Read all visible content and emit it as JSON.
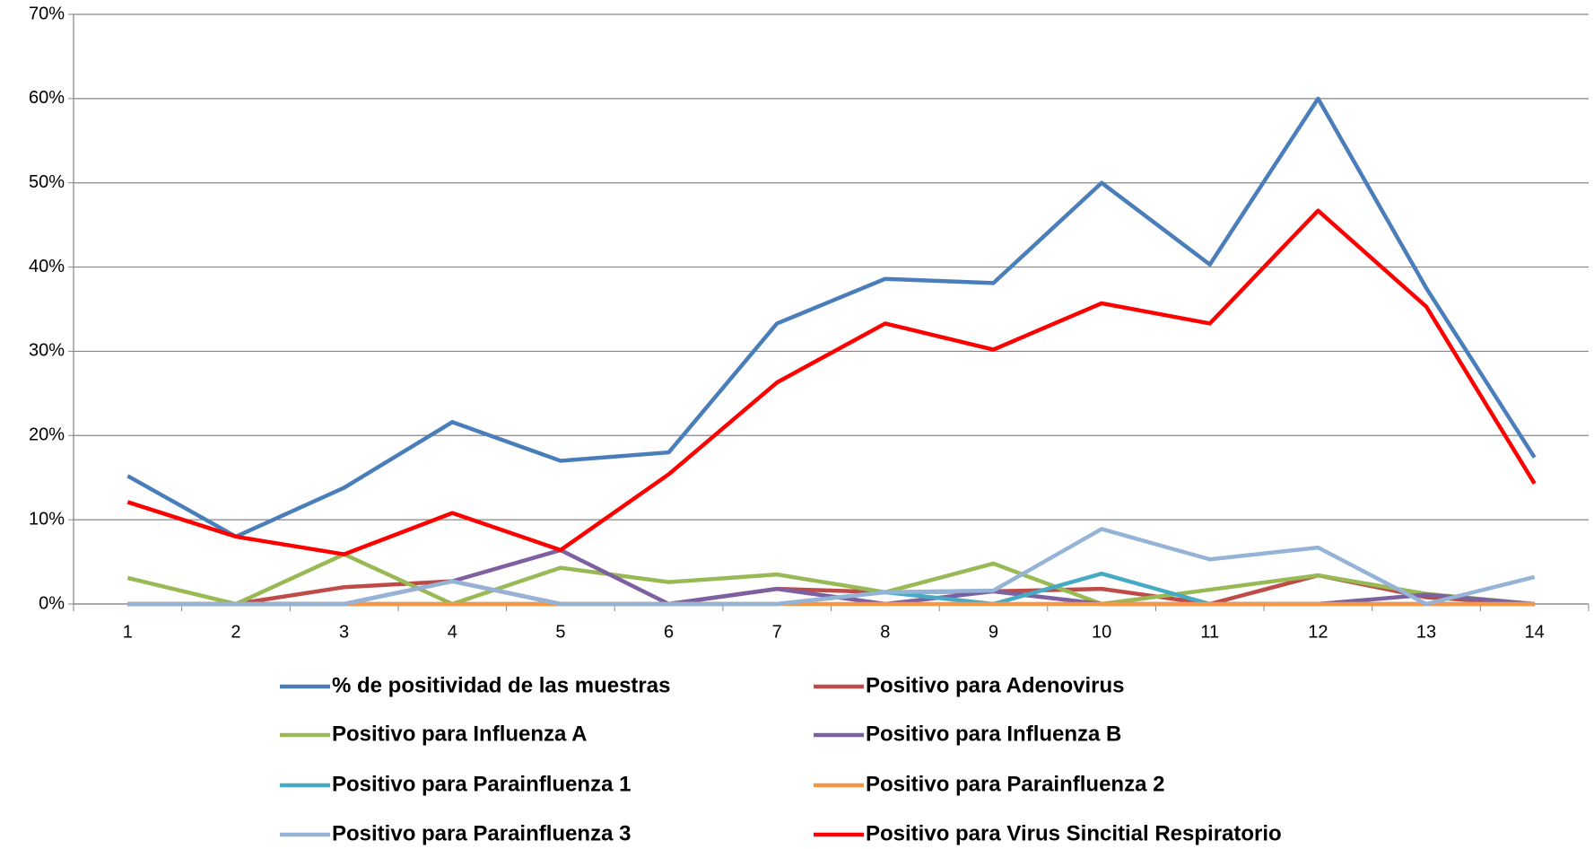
{
  "chart_data": {
    "type": "line",
    "categories": [
      "1",
      "2",
      "3",
      "4",
      "5",
      "6",
      "7",
      "8",
      "9",
      "10",
      "11",
      "12",
      "13",
      "14"
    ],
    "ylim": [
      0,
      70
    ],
    "yticks": [
      {
        "value": 0,
        "label": "0%"
      },
      {
        "value": 10,
        "label": "10%"
      },
      {
        "value": 20,
        "label": "20%"
      },
      {
        "value": 30,
        "label": "30%"
      },
      {
        "value": 40,
        "label": "40%"
      },
      {
        "value": 50,
        "label": "50%"
      },
      {
        "value": 60,
        "label": "60%"
      },
      {
        "value": 70,
        "label": "70%"
      }
    ],
    "grid": true,
    "legend": "bottom",
    "series": [
      {
        "name": "% de positividad de las muestras",
        "color": "#4a7ebb",
        "values": [
          15.2,
          8,
          13.8,
          21.6,
          17,
          18,
          33.3,
          38.6,
          38.1,
          50,
          40.3,
          60,
          37.5,
          17.4
        ]
      },
      {
        "name": "Positivo para Adenovirus",
        "color": "#be4b48",
        "values": [
          0,
          0,
          2,
          2.7,
          0,
          0,
          1.8,
          1.4,
          1.5,
          1.8,
          0,
          3.4,
          0.8,
          0
        ]
      },
      {
        "name": "Positivo para Influenza A",
        "color": "#98b954",
        "values": [
          3.1,
          0,
          5.9,
          0,
          4.3,
          2.6,
          3.5,
          1.4,
          4.8,
          0,
          1.7,
          3.4,
          1.2,
          0
        ]
      },
      {
        "name": "Positivo para Influenza B",
        "color": "#7d60a0",
        "values": [
          0,
          0,
          0,
          2.7,
          6.4,
          0,
          1.8,
          0,
          1.5,
          0,
          0,
          0,
          1.1,
          0
        ]
      },
      {
        "name": "Positivo para Parainfluenza 1",
        "color": "#46aac5",
        "values": [
          0,
          0,
          0,
          0,
          0,
          0,
          0,
          1.4,
          0,
          3.6,
          0,
          0,
          0,
          0
        ]
      },
      {
        "name": "Positivo para Parainfluenza 2",
        "color": "#f79646",
        "values": [
          0,
          0,
          0,
          0,
          0,
          0,
          0,
          0,
          0,
          0,
          0,
          0,
          0,
          0
        ]
      },
      {
        "name": "Positivo para Parainfluenza 3",
        "color": "#95b3d7",
        "values": [
          0,
          0,
          0,
          2.7,
          0,
          0,
          0,
          1.4,
          1.6,
          8.9,
          5.3,
          6.7,
          0,
          3.2
        ]
      },
      {
        "name": "Positivo para Virus Sincitial Respiratorio",
        "color": "#ff0000",
        "values": [
          12.1,
          8,
          5.9,
          10.8,
          6.4,
          15.4,
          26.3,
          33.3,
          30.2,
          35.7,
          33.3,
          46.7,
          35.3,
          14.3
        ]
      }
    ]
  }
}
